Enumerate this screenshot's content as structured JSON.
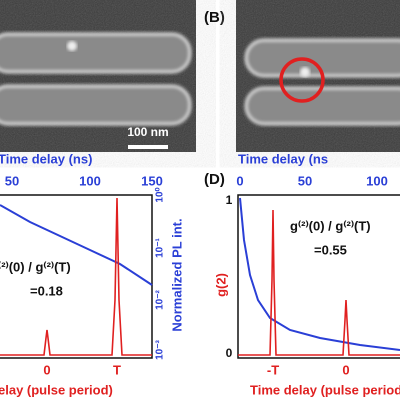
{
  "panels": [
    {
      "scale_bar": "100 nm"
    },
    {
      "label": "(B)"
    },
    {
      "label": "(D)",
      "top_axis_title": "Time delay (ns",
      "top_ticks": [
        "0",
        "50",
        "100"
      ],
      "y_title": "g(2)",
      "y_ticks": [
        "1",
        "0"
      ],
      "ratio": "g⁽²⁾(0) / g⁽²⁾(T)",
      "ratio_value": "=0.55",
      "x_ticks": [
        "-T",
        "0"
      ],
      "x_title": "Time delay (pulse period)"
    },
    {
      "top_axis_title": "Time delay (ns)",
      "top_ticks": [
        "50",
        "100",
        "150"
      ],
      "y2_title": "Normalized PL int.",
      "y2_ticks": [
        "10⁰",
        "10⁻¹",
        "10⁻²",
        "10⁻³"
      ],
      "ratio": "⁽²⁾(0) / g⁽²⁾(T)",
      "ratio_value": "=0.18",
      "x_ticks": [
        "0",
        "T"
      ],
      "x_title": "elay (pulse period)"
    }
  ]
}
